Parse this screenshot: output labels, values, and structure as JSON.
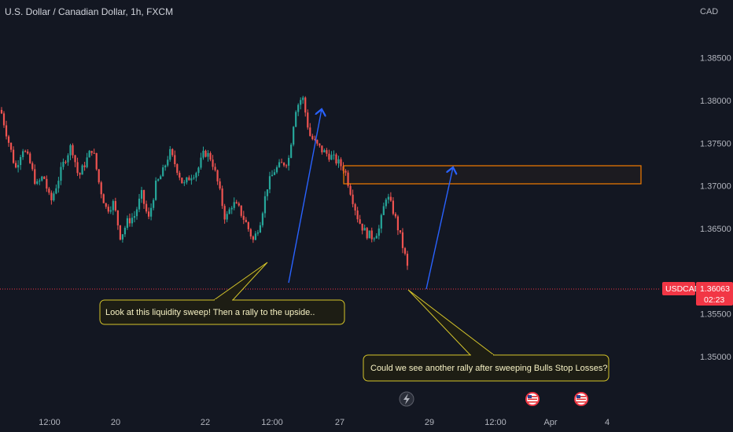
{
  "title": "U.S. Dollar / Canadian Dollar, 1h, FXCM",
  "chart_data": {
    "type": "candlestick",
    "symbol": "USDCAD",
    "currency": "CAD",
    "timeframe": "1h",
    "source": "FXCM",
    "ylim": [
      1.3475,
      1.3905
    ],
    "y_ticks": [
      1.385,
      1.38,
      1.375,
      1.37,
      1.365,
      1.355,
      1.35
    ],
    "y_tick_labels": [
      "1.38500",
      "1.38000",
      "1.37500",
      "1.37000",
      "1.36500",
      "1.35500",
      "1.35000"
    ],
    "x_tick_labels": [
      "12:00",
      "20",
      "22",
      "12:00",
      "27",
      "29",
      "12:00",
      "Apr",
      "4"
    ],
    "grid": false,
    "last_price": 1.36063,
    "last_price_label": "1.36063",
    "symbol_label": "USDCAD",
    "countdown": "02:23",
    "price_path": [
      1.3785,
      1.3752,
      1.372,
      1.3745,
      1.3728,
      1.37,
      1.3712,
      1.368,
      1.3705,
      1.373,
      1.3748,
      1.371,
      1.3728,
      1.3745,
      1.37,
      1.3672,
      1.368,
      1.364,
      1.3658,
      1.3665,
      1.369,
      1.366,
      1.37,
      1.3715,
      1.374,
      1.3722,
      1.37,
      1.3712,
      1.3718,
      1.374,
      1.3732,
      1.37,
      1.366,
      1.368,
      1.3672,
      1.3655,
      1.3635,
      1.366,
      1.37,
      1.3718,
      1.3725,
      1.373,
      1.379,
      1.3805,
      1.376,
      1.3748,
      1.374,
      1.3735,
      1.3728,
      1.372,
      1.369,
      1.366,
      1.3645,
      1.364,
      1.365,
      1.369,
      1.367,
      1.364,
      1.3606
    ],
    "zone": {
      "y_top": 1.3733,
      "y_bottom": 1.3718,
      "color": "#f57c00"
    },
    "arrows": [
      {
        "from": [
          1.362
        ],
        "to": [
          1.38
        ],
        "color": "#2962ff"
      },
      {
        "from": [
          1.3606
        ],
        "to": [
          1.3733
        ],
        "color": "#2962ff"
      }
    ],
    "annotations": [
      "Look at this liquidity sweep! Then a rally to the upside..",
      "Could we see another rally after sweeping Bulls Stop Losses?"
    ],
    "colors": {
      "background": "#131722",
      "up": "#26a69a",
      "down": "#ef5350",
      "price_line": "#f23645",
      "callout_border": "#d4c42a",
      "callout_fill": "#1d1d14",
      "callout_text": "#f7f2c4"
    },
    "event_icons": [
      "lightning-icon",
      "us-flag-icon",
      "us-flag-icon"
    ]
  }
}
